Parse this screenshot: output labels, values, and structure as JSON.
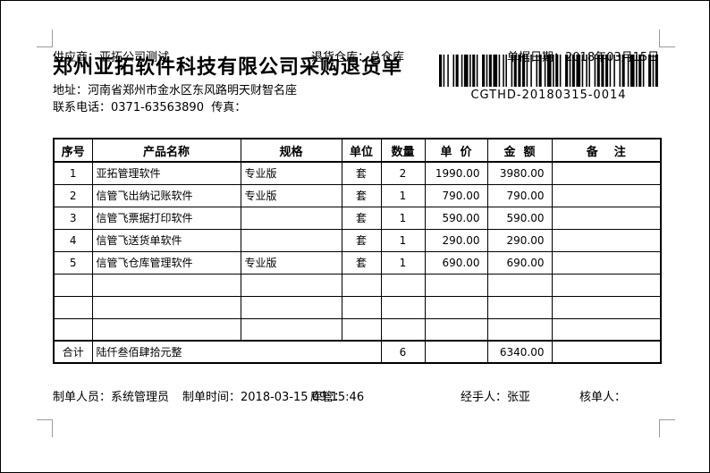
{
  "colors": {
    "background": "#ffffff",
    "text": "#000000",
    "table_border": "#000000",
    "crop_mark": "#9b9b9b",
    "barcode": "#000000"
  },
  "header": {
    "title": "郑州亚拓软件科技有限公司采购退货单",
    "address_label": "地址：",
    "address_value": "河南省郑州市金水区东风路明天财智名座",
    "phone_label": "联系电话：",
    "phone_value": "0371-63563890",
    "fax_label": "传真：",
    "fax_value": "",
    "supplier_label": "供应商：",
    "supplier_value": "亚拓公司测试",
    "warehouse_label": "退货仓库：",
    "warehouse_value": "总仓库",
    "date_label": "单据日期：",
    "date_value": "2018年03月15日",
    "barcode_text": "CGTHD-20180315-0014"
  },
  "table": {
    "columns": [
      "序号",
      "产品名称",
      "规格",
      "单位",
      "数量",
      "单  价",
      "金  额",
      "备    注"
    ],
    "rows": [
      [
        "1",
        "亚拓管理软件",
        "专业版",
        "套",
        "2",
        "1990.00",
        "3980.00",
        ""
      ],
      [
        "2",
        "信管飞出纳记账软件",
        "专业版",
        "套",
        "1",
        "790.00",
        "790.00",
        ""
      ],
      [
        "3",
        "信管飞票据打印软件",
        "",
        "套",
        "1",
        "590.00",
        "590.00",
        ""
      ],
      [
        "4",
        "信管飞送货单软件",
        "",
        "套",
        "1",
        "290.00",
        "290.00",
        ""
      ],
      [
        "5",
        "信管飞仓库管理软件",
        "专业版",
        "套",
        "1",
        "690.00",
        "690.00",
        ""
      ],
      [
        "",
        "",
        "",
        "",
        "",
        "",
        "",
        ""
      ],
      [
        "",
        "",
        "",
        "",
        "",
        "",
        "",
        ""
      ],
      [
        "",
        "",
        "",
        "",
        "",
        "",
        "",
        ""
      ]
    ],
    "total": {
      "label": "合计",
      "amount_in_words": "陆仟叁佰肆拾元整",
      "quantity": "6",
      "unit_price": "",
      "amount": "6340.00",
      "remark": ""
    }
  },
  "footer": {
    "maker_label": "制单人员：",
    "maker_value": "系统管理员",
    "time_label": "制单时间：",
    "time_value": "2018-03-15 09:15:46",
    "keeper_label": "库管：",
    "keeper_value": "",
    "handler_label": "经手人：",
    "handler_value": "张亚",
    "checker_label": "核单人：",
    "checker_value": ""
  }
}
